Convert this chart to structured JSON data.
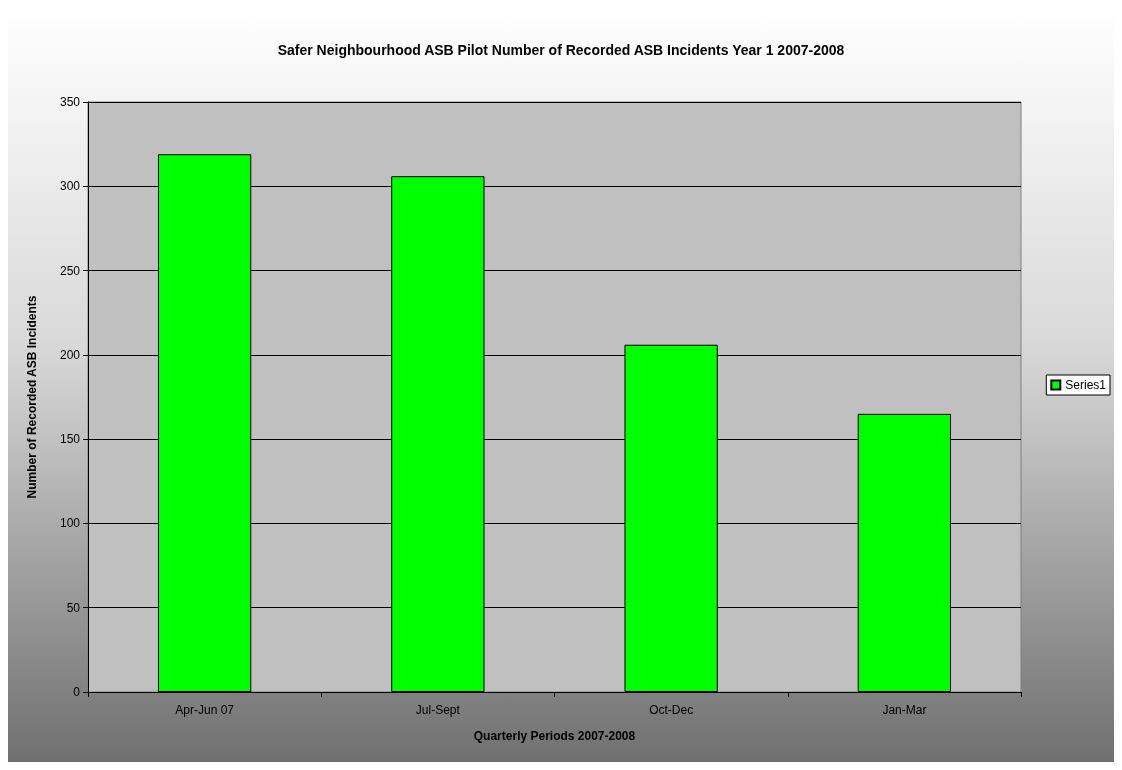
{
  "chart_data": {
    "type": "bar",
    "title": "Safer Neighbourhood ASB Pilot Number of Recorded ASB Incidents Year 1 2007-2008",
    "xlabel": "Quarterly Periods 2007-2008",
    "ylabel": "Number of Recorded ASB Incidents",
    "categories": [
      "Apr-Jun 07",
      "Jul-Sept",
      "Oct-Dec",
      "Jan-Mar"
    ],
    "series": [
      {
        "name": "Series1",
        "color": "#00ff00",
        "values": [
          319,
          306,
          206,
          165
        ]
      }
    ],
    "ylim": [
      0,
      350
    ],
    "yticks": [
      0,
      50,
      100,
      150,
      200,
      250,
      300,
      350
    ],
    "grid": "y",
    "legend": "right"
  }
}
